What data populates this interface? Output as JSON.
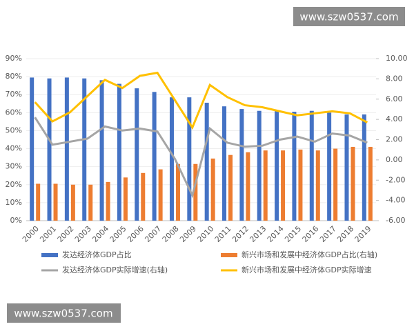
{
  "chart_data": {
    "type": "bar",
    "categories": [
      "2000",
      "2001",
      "2002",
      "2003",
      "2004",
      "2005",
      "2006",
      "2007",
      "2008",
      "2009",
      "2010",
      "2011",
      "2012",
      "2013",
      "2014",
      "2015",
      "2016",
      "2017",
      "2018",
      "2019"
    ],
    "series": [
      {
        "name": "发达经济体GDP占比",
        "color": "#4472c4",
        "type": "bar",
        "axis": "y",
        "values": [
          79.5,
          79,
          79.5,
          79,
          78,
          76,
          73.5,
          71.5,
          68.5,
          68.5,
          65.5,
          63.5,
          62,
          61,
          61,
          60.5,
          61,
          60,
          59,
          59
        ]
      },
      {
        "name": "新兴市场和发展中经济体GDP占比(右轴)",
        "color": "#ed7d31",
        "type": "bar",
        "axis": "y",
        "values": [
          20.5,
          20.5,
          20,
          20,
          21.5,
          24,
          26.5,
          28.5,
          31.5,
          31.5,
          34.5,
          36.5,
          38,
          39,
          39,
          39.5,
          39,
          40,
          41,
          41
        ]
      },
      {
        "name": "发达经济体GDP实际增速(右轴)",
        "color": "#a5a5a5",
        "type": "line",
        "axis": "y2",
        "values": [
          4.2,
          1.5,
          1.8,
          2.1,
          3.3,
          2.9,
          3.1,
          2.8,
          0.1,
          -3.5,
          3.1,
          1.7,
          1.3,
          1.4,
          2.0,
          2.3,
          1.8,
          2.6,
          2.4,
          1.7
        ]
      },
      {
        "name": "新兴市场和发展中经济体GDP实际增速",
        "color": "#ffc000",
        "type": "line",
        "axis": "y2",
        "values": [
          5.7,
          3.8,
          4.7,
          6.3,
          7.9,
          7.1,
          8.3,
          8.6,
          5.9,
          3.2,
          7.4,
          6.2,
          5.4,
          5.2,
          4.8,
          4.4,
          4.6,
          4.8,
          4.6,
          3.7
        ]
      }
    ],
    "ylim": [
      0,
      90
    ],
    "yticks": [
      {
        "value": 0,
        "label": "0%"
      },
      {
        "value": 10,
        "label": "10%"
      },
      {
        "value": 20,
        "label": "20%"
      },
      {
        "value": 30,
        "label": "30%"
      },
      {
        "value": 40,
        "label": "40%"
      },
      {
        "value": 50,
        "label": "50%"
      },
      {
        "value": 60,
        "label": "60%"
      },
      {
        "value": 70,
        "label": "70%"
      },
      {
        "value": 80,
        "label": "80%"
      },
      {
        "value": 90,
        "label": "90%"
      }
    ],
    "y2lim": [
      -6,
      10
    ],
    "y2ticks": [
      {
        "value": -6,
        "label": "-6.00"
      },
      {
        "value": -4,
        "label": "-4.00"
      },
      {
        "value": -2,
        "label": "-2.00"
      },
      {
        "value": 0,
        "label": "0.00"
      },
      {
        "value": 2,
        "label": "2.00"
      },
      {
        "value": 4,
        "label": "4.00"
      },
      {
        "value": 6,
        "label": "6.00"
      },
      {
        "value": 8,
        "label": "8.00"
      },
      {
        "value": 10,
        "label": "10.00"
      }
    ],
    "grid": true,
    "annotations": [
      "www.szw0537.com",
      "www.szw0537.com"
    ]
  }
}
